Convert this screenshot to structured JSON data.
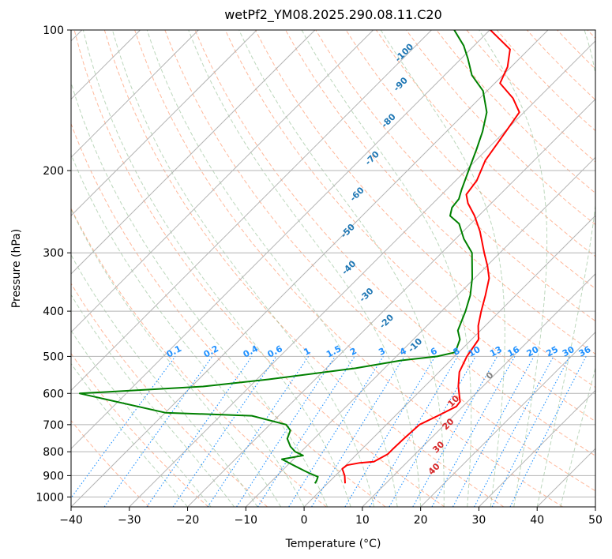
{
  "chart_data": {
    "type": "line",
    "title": "wetPf2_YM08.2025.290.08.11.C20",
    "xlabel": "Temperature (°C)",
    "ylabel": "Pressure (hPa)",
    "xlim": [
      -40,
      50
    ],
    "ylim": [
      1050,
      100
    ],
    "y_scale": "log",
    "grid": true,
    "x_ticks": [
      -40,
      -30,
      -20,
      -10,
      0,
      10,
      20,
      30,
      40,
      50
    ],
    "x_tick_labels": [
      "−40",
      "−30",
      "−20",
      "−10",
      "0",
      "10",
      "20",
      "30",
      "40",
      "50"
    ],
    "y_ticks": [
      100,
      200,
      300,
      400,
      500,
      600,
      700,
      800,
      900,
      1000
    ],
    "y_tick_labels": [
      "100",
      "200",
      "300",
      "400",
      "500",
      "600",
      "700",
      "800",
      "900",
      "1000"
    ],
    "skew_deg": 45,
    "series": [
      {
        "role": "temperature",
        "color": "#ff0000",
        "points": [
          [
            935,
            3.0
          ],
          [
            900,
            1.6
          ],
          [
            870,
            0.0
          ],
          [
            855,
            0.2
          ],
          [
            845,
            2.0
          ],
          [
            840,
            4.2
          ],
          [
            810,
            5.3
          ],
          [
            790,
            5.3
          ],
          [
            750,
            5.4
          ],
          [
            700,
            5.7
          ],
          [
            670,
            7.3
          ],
          [
            640,
            8.9
          ],
          [
            625,
            8.7
          ],
          [
            580,
            5.8
          ],
          [
            540,
            3.5
          ],
          [
            500,
            2.1
          ],
          [
            460,
            1.2
          ],
          [
            430,
            -1.2
          ],
          [
            400,
            -3.2
          ],
          [
            370,
            -5.2
          ],
          [
            340,
            -7.5
          ],
          [
            320,
            -9.9
          ],
          [
            300,
            -12.7
          ],
          [
            270,
            -17.1
          ],
          [
            250,
            -20.7
          ],
          [
            235,
            -24.0
          ],
          [
            225,
            -25.8
          ],
          [
            210,
            -26.4
          ],
          [
            190,
            -28.4
          ],
          [
            165,
            -29.8
          ],
          [
            150,
            -30.8
          ],
          [
            140,
            -34.3
          ],
          [
            130,
            -39.1
          ],
          [
            120,
            -40.6
          ],
          [
            110,
            -43.2
          ],
          [
            100,
            -49.9
          ]
        ]
      },
      {
        "role": "dewpoint",
        "color": "#008000",
        "points": [
          [
            935,
            -2.2
          ],
          [
            925,
            -2.3
          ],
          [
            905,
            -2.8
          ],
          [
            890,
            -4.8
          ],
          [
            880,
            -6.0
          ],
          [
            860,
            -8.4
          ],
          [
            830,
            -12.0
          ],
          [
            815,
            -9.0
          ],
          [
            800,
            -11.0
          ],
          [
            780,
            -12.7
          ],
          [
            750,
            -14.6
          ],
          [
            720,
            -15.5
          ],
          [
            700,
            -17.2
          ],
          [
            670,
            -24.6
          ],
          [
            660,
            -40.0
          ],
          [
            600,
            -58.0
          ],
          [
            580,
            -38.0
          ],
          [
            560,
            -28.0
          ],
          [
            530,
            -15.0
          ],
          [
            510,
            -8.5
          ],
          [
            500,
            -3.0
          ],
          [
            490,
            -0.6
          ],
          [
            460,
            -2.0
          ],
          [
            440,
            -3.9
          ],
          [
            400,
            -5.9
          ],
          [
            370,
            -7.8
          ],
          [
            340,
            -10.4
          ],
          [
            300,
            -14.8
          ],
          [
            280,
            -18.6
          ],
          [
            260,
            -22.0
          ],
          [
            250,
            -24.9
          ],
          [
            240,
            -26.0
          ],
          [
            230,
            -26.3
          ],
          [
            220,
            -27.4
          ],
          [
            200,
            -29.5
          ],
          [
            180,
            -31.8
          ],
          [
            165,
            -33.8
          ],
          [
            150,
            -36.4
          ],
          [
            135,
            -40.7
          ],
          [
            125,
            -45.3
          ],
          [
            115,
            -48.9
          ],
          [
            108,
            -51.8
          ],
          [
            100,
            -56.1
          ]
        ]
      }
    ],
    "dry_adiabat_labels": [],
    "moist_adiabat_labels": [
      {
        "text": "-100",
        "t": -60.1,
        "p": 113
      },
      {
        "text": "-90",
        "t": -55.3,
        "p": 132
      },
      {
        "text": "-80",
        "t": -51.1,
        "p": 158
      },
      {
        "text": "-70",
        "t": -47.5,
        "p": 190
      },
      {
        "text": "-60",
        "t": -43.9,
        "p": 227
      },
      {
        "text": "-50",
        "t": -39.2,
        "p": 272
      },
      {
        "text": "-40",
        "t": -32.7,
        "p": 326
      },
      {
        "text": "-30",
        "t": -25.0,
        "p": 373
      },
      {
        "text": "-20",
        "t": -17.0,
        "p": 425
      },
      {
        "text": "-10",
        "t": -8.0,
        "p": 478
      },
      {
        "text": "0",
        "t": 10.0,
        "p": 555
      },
      {
        "text": "10",
        "t": 8.2,
        "p": 630
      },
      {
        "text": "20",
        "t": 11.2,
        "p": 705
      },
      {
        "text": "30",
        "t": 13.5,
        "p": 790
      },
      {
        "text": "40",
        "t": 16.5,
        "p": 880
      }
    ],
    "mixing_ratio_labels": [
      "0.1",
      "0.2",
      "0.4",
      "0.6",
      "1",
      "1.5",
      "2",
      "3",
      "4",
      "6",
      "8",
      "10",
      "13",
      "16",
      "20",
      "25",
      "30",
      "36"
    ],
    "colors": {
      "temperature": "#ff0000",
      "dewpoint": "#008000",
      "isotherm": "#b4b4b4",
      "isobar": "#b4b4b4",
      "dry_adiabat": "#ffa07a",
      "moist_adiabat": "#8fbc8f",
      "mixing_ratio": "#1e90ff",
      "ann_blue": "#1f77b4",
      "ann_red": "#d62728",
      "ann_gray": "#808080"
    }
  }
}
